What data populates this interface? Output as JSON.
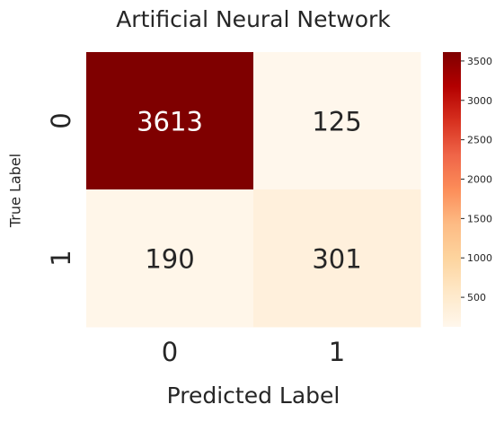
{
  "chart_data": {
    "type": "heatmap",
    "title": "Artificial Neural Network",
    "xlabel": "Predicted Label",
    "ylabel": "True Label",
    "x_categories": [
      "0",
      "1"
    ],
    "y_categories": [
      "0",
      "1"
    ],
    "values": [
      [
        3613,
        125
      ],
      [
        190,
        301
      ]
    ],
    "colorbar": {
      "colormap": "OrRd",
      "range": [
        125,
        3613
      ],
      "ticks": [
        500,
        1000,
        1500,
        2000,
        2500,
        3000,
        3500
      ]
    },
    "colors": {
      "cell_0_0": "#7f0000",
      "cell_0_1": "#fff7ec",
      "cell_1_0": "#fff6e9",
      "cell_1_1": "#fff0dc"
    },
    "legend_position": "right"
  }
}
